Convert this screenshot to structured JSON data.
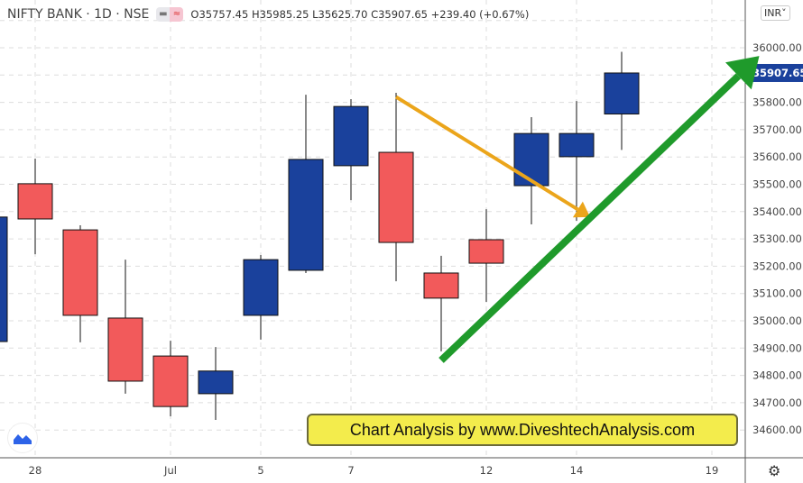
{
  "header": {
    "symbol": "NIFTY BANK · 1D · NSE",
    "ohlc": "O35757.45 H35985.25 L35625.70 C35907.65 +239.40 (+0.67%)",
    "currency": "INR",
    "currency_icon": "chevron-down-icon"
  },
  "banner": "Chart Analysis by www.DiveshtechAnalysis.com",
  "colors": {
    "up": "#1a419c",
    "down": "#f25a5b",
    "orange_arrow": "#eba51b",
    "green_arrow": "#1f9a2b",
    "last_price_bg": "#1a419c"
  },
  "chart_data": {
    "type": "candlestick",
    "ylim": [
      34500,
      36050
    ],
    "y_ticks": [
      "36000.00",
      "35800.00",
      "35700.00",
      "35600.00",
      "35500.00",
      "35400.00",
      "35300.00",
      "35200.00",
      "35100.00",
      "35000.00",
      "34900.00",
      "34800.00",
      "34700.00",
      "34600.00"
    ],
    "y_tick_values": [
      36000,
      35800,
      35700,
      35600,
      35500,
      35400,
      35300,
      35200,
      35100,
      35000,
      34900,
      34800,
      34700,
      34600
    ],
    "last_price_label": "35907.65",
    "last_price": 35907.65,
    "x_ticks": [
      {
        "label": "28",
        "slot": 1
      },
      {
        "label": "Jul",
        "slot": 4
      },
      {
        "label": "5",
        "slot": 6
      },
      {
        "label": "7",
        "slot": 8
      },
      {
        "label": "12",
        "slot": 11
      },
      {
        "label": "14",
        "slot": 13
      },
      {
        "label": "19",
        "slot": 16
      }
    ],
    "candles": [
      {
        "slot": 0,
        "o": 34924,
        "h": 35400,
        "l": 34900,
        "c": 35380
      },
      {
        "slot": 1,
        "o": 35502,
        "h": 35594,
        "l": 35244,
        "c": 35373
      },
      {
        "slot": 2,
        "o": 35333,
        "h": 35350,
        "l": 34921,
        "c": 35020
      },
      {
        "slot": 3,
        "o": 35010,
        "h": 35224,
        "l": 34733,
        "c": 34779
      },
      {
        "slot": 4,
        "o": 34871,
        "h": 34927,
        "l": 34650,
        "c": 34686
      },
      {
        "slot": 5,
        "o": 34733,
        "h": 34904,
        "l": 34637,
        "c": 34816
      },
      {
        "slot": 6,
        "o": 35020,
        "h": 35241,
        "l": 34931,
        "c": 35224
      },
      {
        "slot": 7,
        "o": 35185,
        "h": 35828,
        "l": 35175,
        "c": 35591
      },
      {
        "slot": 8,
        "o": 35568,
        "h": 35812,
        "l": 35442,
        "c": 35785
      },
      {
        "slot": 9,
        "o": 35617,
        "h": 35835,
        "l": 35145,
        "c": 35287
      },
      {
        "slot": 10,
        "o": 35175,
        "h": 35238,
        "l": 34888,
        "c": 35083
      },
      {
        "slot": 11,
        "o": 35297,
        "h": 35409,
        "l": 35069,
        "c": 35211
      },
      {
        "slot": 12,
        "o": 35495,
        "h": 35746,
        "l": 35353,
        "c": 35686
      },
      {
        "slot": 13,
        "o": 35601,
        "h": 35805,
        "l": 35366,
        "c": 35686
      },
      {
        "slot": 14,
        "o": 35757.45,
        "h": 35985.25,
        "l": 35625.7,
        "c": 35907.65
      }
    ],
    "annotations": [
      {
        "type": "arrow",
        "color": "orange",
        "from": {
          "slot": 9,
          "price": 35820
        },
        "to": {
          "slot": 13.3,
          "price": 35380
        }
      },
      {
        "type": "arrow",
        "color": "green",
        "from": {
          "slot": 10,
          "price": 34855
        },
        "to": {
          "slot": 17.05,
          "price": 35970
        }
      }
    ]
  }
}
